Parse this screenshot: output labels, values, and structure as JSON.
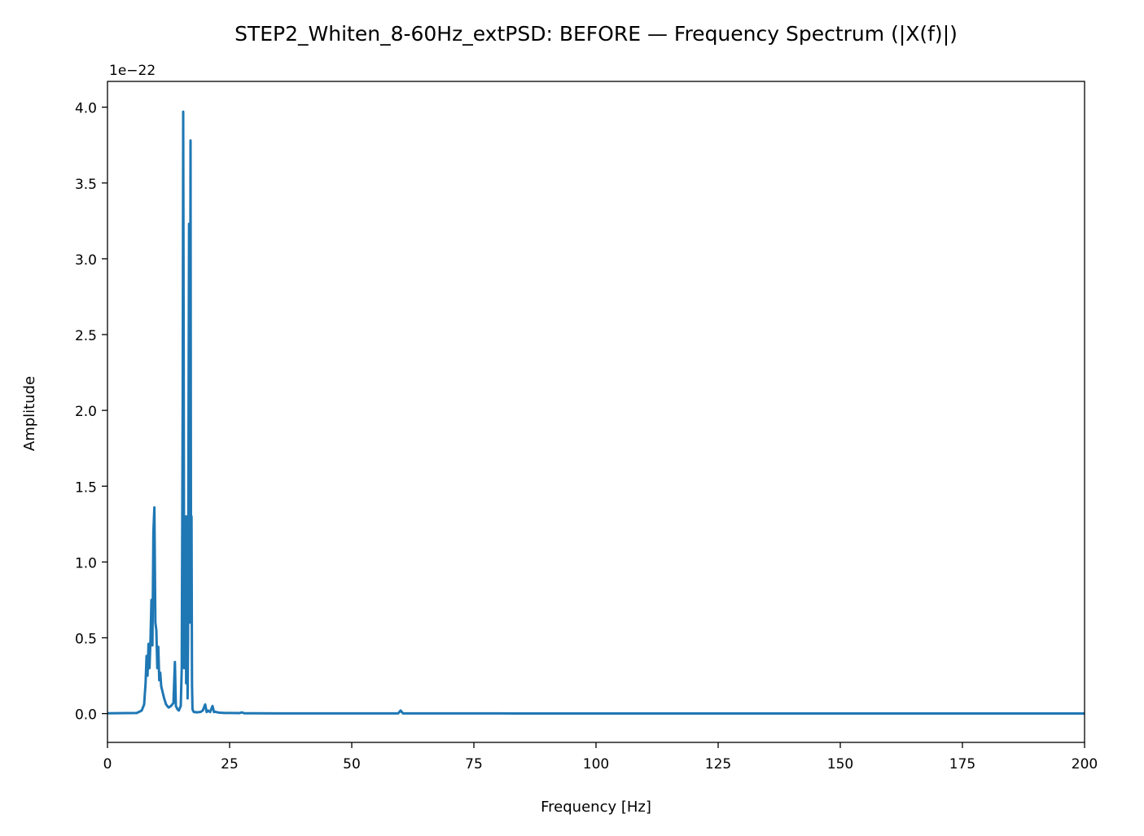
{
  "chart_data": {
    "type": "line",
    "title": "STEP2_Whiten_8-60Hz_extPSD: BEFORE — Frequency Spectrum (|X(f)|)",
    "xlabel": "Frequency [Hz]",
    "ylabel": "Amplitude",
    "y_offset_label": "1e−22",
    "xlim": [
      0,
      200
    ],
    "ylim": [
      -0.19,
      4.17
    ],
    "x_ticks": [
      0,
      25,
      50,
      75,
      100,
      125,
      150,
      175,
      200
    ],
    "x_tick_labels": [
      "0",
      "25",
      "50",
      "75",
      "100",
      "125",
      "150",
      "175",
      "200"
    ],
    "y_ticks": [
      0.0,
      0.5,
      1.0,
      1.5,
      2.0,
      2.5,
      3.0,
      3.5,
      4.0
    ],
    "y_tick_labels": [
      "0.0",
      "0.5",
      "1.0",
      "1.5",
      "2.0",
      "2.5",
      "3.0",
      "3.5",
      "4.0"
    ],
    "grid": false,
    "legend": "none",
    "series": [
      {
        "color": "#1f77b4",
        "x": [
          0,
          6,
          7,
          7.5,
          7.8,
          8.0,
          8.2,
          8.4,
          8.6,
          8.8,
          9.0,
          9.2,
          9.4,
          9.6,
          9.8,
          10.0,
          10.2,
          10.4,
          10.6,
          10.8,
          11.0,
          11.3,
          11.6,
          12.0,
          12.5,
          13.0,
          13.5,
          13.8,
          14.0,
          14.3,
          14.6,
          15.0,
          15.2,
          15.4,
          15.5,
          15.6,
          15.7,
          15.8,
          15.9,
          16.0,
          16.1,
          16.2,
          16.3,
          16.4,
          16.5,
          16.6,
          16.7,
          16.8,
          16.9,
          17.0,
          17.1,
          17.2,
          17.3,
          17.4,
          17.5,
          17.6,
          17.7,
          17.8,
          17.9,
          18.0,
          18.3,
          18.7,
          19.0,
          19.5,
          20.0,
          20.3,
          20.6,
          21.0,
          21.5,
          21.8,
          22.1,
          22.5,
          23.0,
          24.0,
          25.0,
          27.0,
          27.5,
          28.0,
          30.0,
          35.0,
          45.0,
          59.5,
          60.0,
          60.5,
          80.0,
          120.0,
          150.0,
          180.0,
          200.0
        ],
        "y": [
          0.002,
          0.004,
          0.02,
          0.06,
          0.2,
          0.38,
          0.25,
          0.46,
          0.3,
          0.48,
          0.75,
          0.45,
          1.2,
          1.36,
          0.6,
          0.55,
          0.3,
          0.44,
          0.22,
          0.27,
          0.18,
          0.14,
          0.1,
          0.06,
          0.04,
          0.05,
          0.07,
          0.34,
          0.05,
          0.03,
          0.02,
          0.05,
          0.3,
          2.1,
          3.97,
          2.4,
          0.3,
          1.3,
          0.4,
          1.3,
          0.2,
          0.9,
          1.3,
          0.1,
          0.5,
          2.0,
          3.23,
          0.6,
          1.5,
          3.78,
          0.8,
          1.3,
          0.2,
          0.03,
          0.02,
          0.015,
          0.01,
          0.01,
          0.01,
          0.01,
          0.008,
          0.01,
          0.01,
          0.02,
          0.06,
          0.01,
          0.02,
          0.01,
          0.05,
          0.01,
          0.012,
          0.008,
          0.006,
          0.004,
          0.004,
          0.003,
          0.008,
          0.002,
          0.002,
          0.001,
          0.001,
          0.001,
          0.02,
          0.001,
          0.001,
          0.0005,
          0.0005,
          0.0005,
          0.0005
        ]
      }
    ]
  }
}
